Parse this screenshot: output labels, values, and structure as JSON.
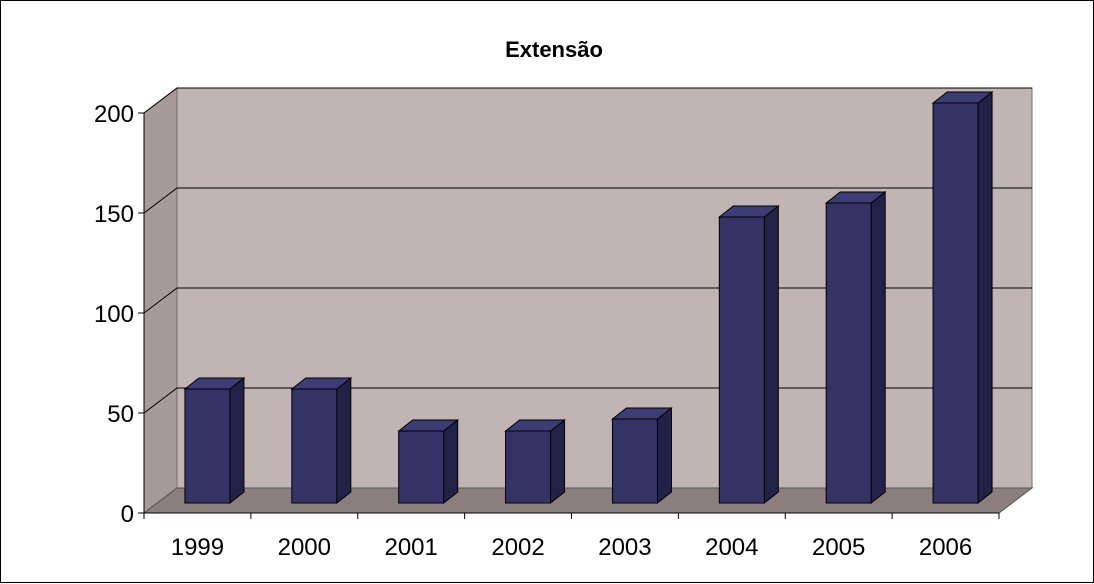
{
  "chart_data": {
    "type": "bar",
    "title": "Extensão",
    "xlabel": "",
    "ylabel": "",
    "categories": [
      "1999",
      "2000",
      "2001",
      "2002",
      "2003",
      "2004",
      "2005",
      "2006"
    ],
    "values": [
      57,
      57,
      36,
      36,
      42,
      143,
      150,
      200
    ],
    "ylim": [
      0,
      200
    ],
    "yticks": [
      "0",
      "50",
      "100",
      "150",
      "200"
    ],
    "grid": true,
    "legend": "none",
    "style": "3d-column",
    "colors": {
      "bar_front": "#333366",
      "bar_side": "#222248",
      "bar_top": "#3d3d75",
      "wall": "#c0b5b3",
      "side_wall": "#a69b99",
      "floor": "#8a7f7d",
      "gridline": "#000000"
    }
  }
}
